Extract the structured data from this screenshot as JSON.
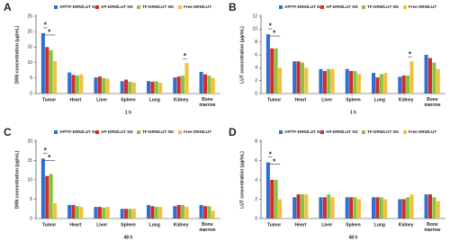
{
  "chart_data": [
    {
      "type": "bar",
      "label": "A",
      "ylabel": "DRN concentration (µg/mL)",
      "xlabel": "1 h",
      "categories": [
        "Tumor",
        "Heart",
        "Liver",
        "Spleen",
        "Lung",
        "Kidney",
        "Bone marrow"
      ],
      "ylim": [
        0,
        25
      ],
      "yticks": [
        0,
        5,
        10,
        15,
        20,
        25
      ],
      "series": [
        {
          "name": "AP/TF-DRN/LUT NS",
          "color": "#2f6fd0",
          "values": [
            19.5,
            6.8,
            5.2,
            4,
            4,
            5.2,
            7
          ]
        },
        {
          "name": "AP-DRN/LUT NS",
          "color": "#d42a2a",
          "values": [
            15,
            6,
            5.5,
            4.5,
            3.8,
            5.5,
            6.2
          ]
        },
        {
          "name": "TF-DRN/LUT NS",
          "color": "#86c440",
          "values": [
            14,
            5.8,
            5,
            3.8,
            4,
            5.8,
            5.8
          ]
        },
        {
          "name": "Free DRN/LUT",
          "color": "#f4c03c",
          "values": [
            10.5,
            6.2,
            4.8,
            3.5,
            3.5,
            9.8,
            5
          ]
        }
      ],
      "annotations": [
        "*",
        "*",
        "*"
      ]
    },
    {
      "type": "bar",
      "label": "B",
      "ylabel": "LUT concentration (µg/mL)",
      "xlabel": "1 h",
      "categories": [
        "Tumor",
        "Heart",
        "Liver",
        "Spleen",
        "Lung",
        "Kidney",
        "Bone marrow"
      ],
      "ylim": [
        0,
        12
      ],
      "yticks": [
        0,
        2,
        4,
        6,
        8,
        10,
        12
      ],
      "series": [
        {
          "name": "AP/TF-DRN/LUT NS",
          "color": "#2f6fd0",
          "values": [
            9.2,
            5,
            3.8,
            3.8,
            3.2,
            2.6,
            6
          ]
        },
        {
          "name": "AP-DRN/LUT NS",
          "color": "#d42a2a",
          "values": [
            7,
            5,
            3.5,
            3.5,
            2.5,
            2.8,
            5.5
          ]
        },
        {
          "name": "TF-DRN/LUT NS",
          "color": "#86c440",
          "values": [
            7,
            4.8,
            3.8,
            3.5,
            3,
            2.8,
            4.8
          ]
        },
        {
          "name": "Free DRN/LUT",
          "color": "#f4c03c",
          "values": [
            4,
            4,
            3.8,
            3,
            3.2,
            5,
            3.8
          ]
        }
      ],
      "annotations": [
        "*",
        "*",
        "*"
      ]
    },
    {
      "type": "bar",
      "label": "C",
      "ylabel": "DRN concentration (µg/mL)",
      "xlabel": "48 h",
      "categories": [
        "Tumor",
        "Heart",
        "Liver",
        "Spleen",
        "Lung",
        "Kidney",
        "Bone marrow"
      ],
      "ylim": [
        0,
        20
      ],
      "yticks": [
        0,
        5,
        10,
        15,
        20
      ],
      "series": [
        {
          "name": "AP/TF-DRN/LUT NS",
          "color": "#2f6fd0",
          "values": [
            15.5,
            3.5,
            3,
            2.5,
            3.5,
            3.2,
            3.5
          ]
        },
        {
          "name": "AP-DRN/LUT NS",
          "color": "#d42a2a",
          "values": [
            11,
            3.5,
            3,
            2.5,
            3.2,
            3.5,
            3.2
          ]
        },
        {
          "name": "TF-DRN/LUT NS",
          "color": "#86c440",
          "values": [
            11.5,
            3.2,
            2.8,
            2.5,
            3,
            3.5,
            3.2
          ]
        },
        {
          "name": "Free DRN/LUT",
          "color": "#f4c03c",
          "values": [
            4,
            3,
            3,
            2.5,
            3,
            3,
            2
          ]
        }
      ],
      "annotations": [
        "*",
        "*"
      ]
    },
    {
      "type": "bar",
      "label": "D",
      "ylabel": "LUT concentration (µg/mL)",
      "xlabel": "48 h",
      "categories": [
        "Tumor",
        "Heart",
        "Liver",
        "Spleen",
        "Lung",
        "Kidney",
        "Bone marrow"
      ],
      "ylim": [
        0,
        8
      ],
      "yticks": [
        0,
        2,
        4,
        6,
        8
      ],
      "series": [
        {
          "name": "AP/TF-DRN/LUT NS",
          "color": "#2f6fd0",
          "values": [
            5.8,
            2.2,
            2.2,
            2.2,
            2.2,
            2,
            2.5
          ]
        },
        {
          "name": "AP-DRN/LUT NS",
          "color": "#d42a2a",
          "values": [
            4,
            2.5,
            2.2,
            2.2,
            2.2,
            2,
            2.5
          ]
        },
        {
          "name": "TF-DRN/LUT NS",
          "color": "#86c440",
          "values": [
            4,
            2.5,
            2.5,
            2.2,
            2.2,
            2.2,
            2.2
          ]
        },
        {
          "name": "Free DRN/LUT",
          "color": "#f4c03c",
          "values": [
            2,
            2.5,
            2.2,
            2,
            2,
            2.5,
            1.8
          ]
        }
      ],
      "annotations": [
        "*",
        "*"
      ]
    }
  ]
}
